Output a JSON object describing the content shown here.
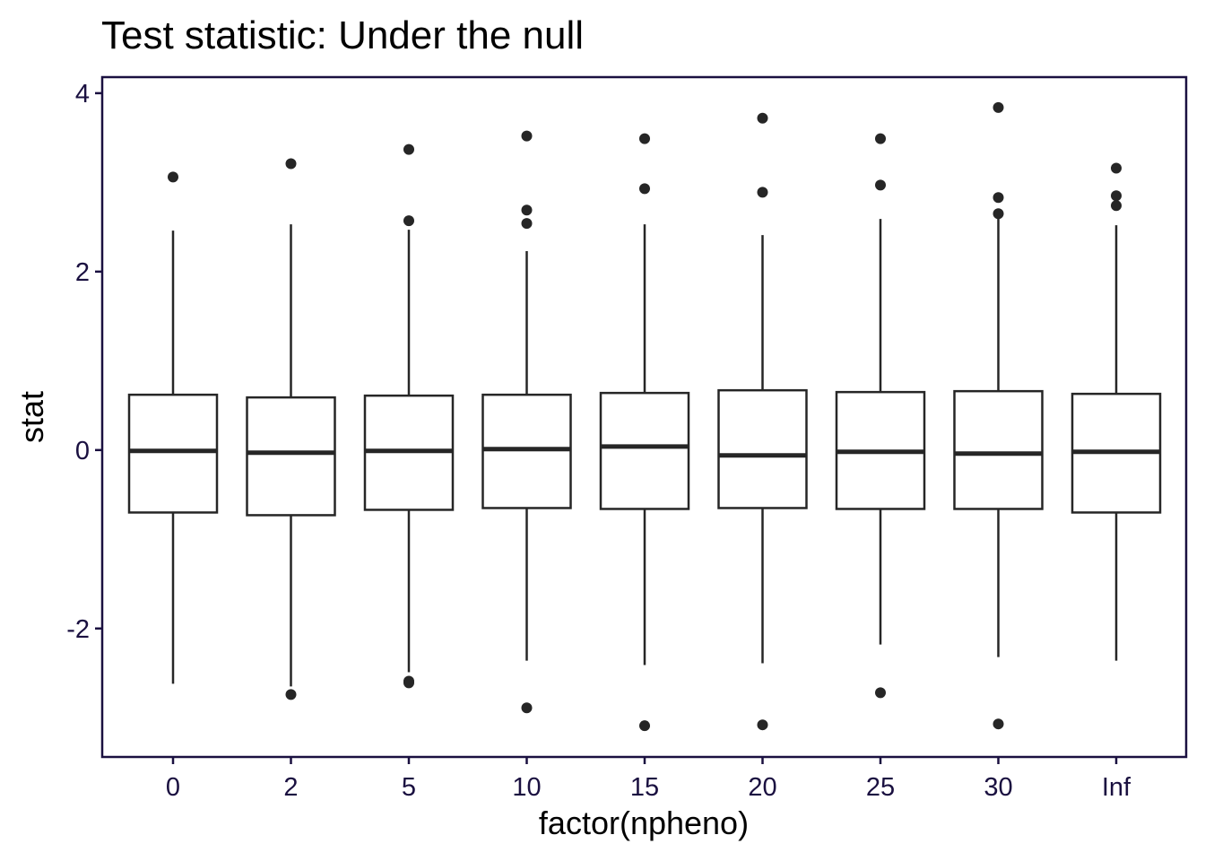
{
  "chart_data": {
    "type": "boxplot",
    "title": "Test statistic: Under the null",
    "xlabel": "factor(npheno)",
    "ylabel": "stat",
    "ylim": [
      -3.44,
      4.18
    ],
    "yticks": [
      -2,
      0,
      2,
      4
    ],
    "yticklabels": [
      "-2",
      "0",
      "2",
      "4"
    ],
    "grid": false,
    "legend": "none",
    "colors": {
      "box_stroke": "#262626",
      "point": "#262626",
      "axis": "#1a1040",
      "panel_border": "#1a1040",
      "tick_text": "#1a1040"
    },
    "categories": [
      "0",
      "2",
      "5",
      "10",
      "15",
      "20",
      "25",
      "30",
      "Inf"
    ],
    "boxes": [
      {
        "category": "0",
        "q1": -0.7,
        "median": -0.01,
        "q3": 0.62,
        "whisker_low": -2.62,
        "whisker_high": 2.46,
        "outliers": [
          3.06
        ]
      },
      {
        "category": "2",
        "q1": -0.73,
        "median": -0.03,
        "q3": 0.59,
        "whisker_low": -2.65,
        "whisker_high": 2.53,
        "outliers": [
          3.21,
          -2.74
        ]
      },
      {
        "category": "5",
        "q1": -0.67,
        "median": -0.01,
        "q3": 0.61,
        "whisker_low": -2.49,
        "whisker_high": 2.47,
        "outliers": [
          3.37,
          2.57,
          -2.59,
          -2.61
        ]
      },
      {
        "category": "10",
        "q1": -0.65,
        "median": 0.01,
        "q3": 0.62,
        "whisker_low": -2.36,
        "whisker_high": 2.23,
        "outliers": [
          3.52,
          2.69,
          2.54,
          -2.89
        ]
      },
      {
        "category": "15",
        "q1": -0.66,
        "median": 0.04,
        "q3": 0.64,
        "whisker_low": -2.41,
        "whisker_high": 2.53,
        "outliers": [
          3.49,
          2.93,
          -3.09
        ]
      },
      {
        "category": "20",
        "q1": -0.65,
        "median": -0.06,
        "q3": 0.67,
        "whisker_low": -2.39,
        "whisker_high": 2.41,
        "outliers": [
          3.72,
          2.89,
          -3.08
        ]
      },
      {
        "category": "25",
        "q1": -0.66,
        "median": -0.02,
        "q3": 0.65,
        "whisker_low": -2.18,
        "whisker_high": 2.59,
        "outliers": [
          3.49,
          2.97,
          -2.72
        ]
      },
      {
        "category": "30",
        "q1": -0.66,
        "median": -0.04,
        "q3": 0.66,
        "whisker_low": -2.32,
        "whisker_high": 2.66,
        "outliers": [
          3.84,
          2.83,
          2.65,
          -3.07
        ]
      },
      {
        "category": "Inf",
        "q1": -0.7,
        "median": -0.02,
        "q3": 0.63,
        "whisker_low": -2.36,
        "whisker_high": 2.52,
        "outliers": [
          3.16,
          2.85,
          2.74
        ]
      }
    ]
  }
}
